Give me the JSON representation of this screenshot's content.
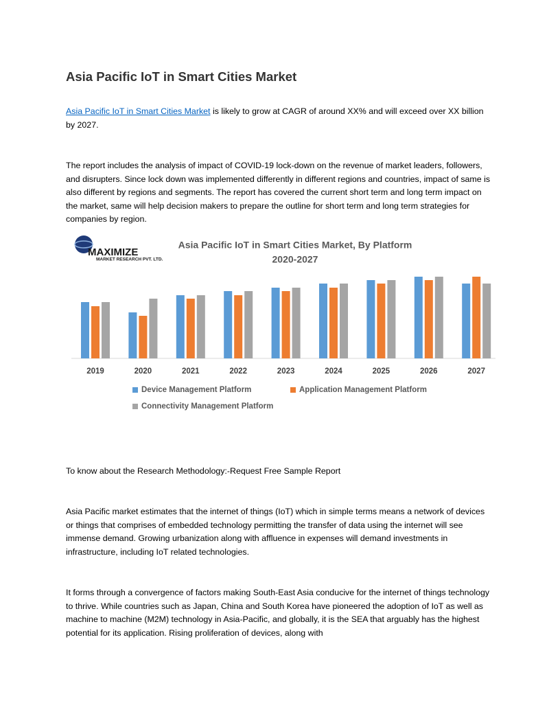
{
  "header": {
    "title": "Asia Pacific IoT in Smart Cities Market"
  },
  "paragraphs": {
    "intro": {
      "link": "Asia Pacific IoT in Smart Cities Market",
      "text": "is likely to grow at CAGR of around XX% and will exceed over XX billion by 2027."
    },
    "covid": "The report includes the analysis of impact of COVID-19 lock-down on the revenue of market leaders, followers, and disrupters. Since lock down was implemented differently in different regions and countries, impact of same is also different by regions and segments. The report has covered the current short term and long term impact on the market, same will help decision makers to prepare the outline for short term and long term strategies for companies by region.",
    "methodology": "To know about the Research Methodology:-Request Free Sample Report",
    "estimates": "Asia Pacific market estimates that the internet of things (IoT) which in simple terms means a network of devices or things that comprises of embedded technology permitting the transfer of data using the internet will see immense demand. Growing urbanization along with affluence in expenses will demand investments in infrastructure, including IoT related technologies.",
    "convergence": "It forms through a convergence of factors making South-East Asia conducive for the internet of things technology to thrive. While countries such as Japan, China and South Korea have pioneered the adoption of IoT as well as machine to machine (M2M) technology in Asia-Pacific, and globally, it is the SEA that arguably has the highest potential for its application. Rising proliferation of devices, along with"
  },
  "logo": {
    "name": "MAXIMIZE",
    "tagline": "MARKET RESEARCH PVT. LTD."
  },
  "chart_data": {
    "type": "bar",
    "title": "Asia Pacific IoT in Smart Cities Market, By Platform",
    "subtitle": "2020-2027",
    "categories": [
      "2019",
      "2020",
      "2021",
      "2022",
      "2023",
      "2024",
      "2025",
      "2026",
      "2027"
    ],
    "ylim": [
      0,
      120
    ],
    "series": [
      {
        "name": "Device Management Platform",
        "color": "#5b9bd5",
        "values": [
          82,
          67,
          92,
          98,
          103,
          109,
          114,
          119,
          109
        ]
      },
      {
        "name": "Application Management Platform",
        "color": "#ed7d31",
        "values": [
          76,
          62,
          87,
          92,
          98,
          103,
          109,
          114,
          119
        ]
      },
      {
        "name": "Connectivity Management Platform",
        "color": "#a5a5a5",
        "values": [
          82,
          87,
          92,
          98,
          103,
          109,
          114,
          119,
          109
        ]
      }
    ]
  }
}
